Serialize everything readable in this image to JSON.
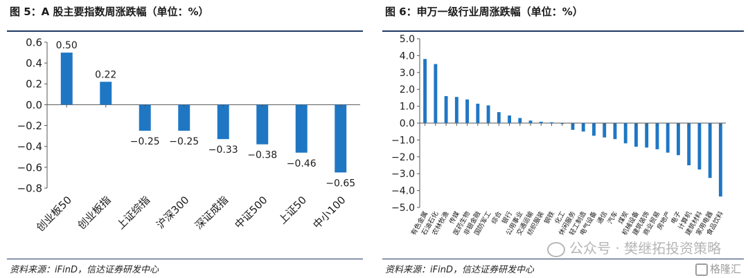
{
  "colors": {
    "bar": "#1f77c4",
    "rule": "#1f3864",
    "axis": "#555555"
  },
  "left": {
    "title": "图 5：A 股主要指数周涨跌幅（单位：%）",
    "source": "资料来源：iFinD，信达证券研发中心"
  },
  "right": {
    "title": "图 6：申万一级行业周涨跌幅（单位：%）",
    "source": "资料来源：iFinD，信达证券研发中心"
  },
  "watermark": {
    "icon": "wechat-icon",
    "text": "公众号 · 樊继拓投资策略",
    "brand": "格隆汇"
  },
  "chart_data": [
    {
      "type": "bar",
      "categories": [
        "创业板50",
        "创业板指",
        "上证综指",
        "沪深300",
        "深证成指",
        "中证500",
        "上证50",
        "中小100"
      ],
      "values": [
        0.5,
        0.22,
        -0.25,
        -0.25,
        -0.33,
        -0.38,
        -0.46,
        -0.65
      ],
      "data_labels": [
        "0.50",
        "0.22",
        "-0.25",
        "-0.25",
        "-0.33",
        "-0.38",
        "-0.46",
        "-0.65"
      ],
      "yticks": [
        "0.6",
        "0.4",
        "0.2",
        "0.0",
        "-0.2",
        "-0.4",
        "-0.6",
        "-0.8"
      ],
      "ylim": [
        -0.8,
        0.6
      ],
      "grid": false
    },
    {
      "type": "bar",
      "categories": [
        "有色金属",
        "石油石化",
        "农林牧渔",
        "传媒",
        "医药生物",
        "非银金融",
        "国防军工",
        "综合",
        "银行",
        "公用事业",
        "交通运输",
        "纺织服装",
        "钢铁",
        "化工",
        "休闲服务",
        "轻工制造",
        "电气设备",
        "通信",
        "汽车",
        "煤炭",
        "机械设备",
        "建筑装饰",
        "商业贸易",
        "房地产",
        "电子",
        "计算机",
        "建筑材料",
        "家用电器",
        "食品饮料"
      ],
      "values": [
        3.8,
        3.5,
        1.6,
        1.55,
        1.4,
        1.15,
        1.05,
        0.65,
        0.45,
        0.3,
        0.15,
        0.08,
        0.05,
        -0.05,
        -0.4,
        -0.5,
        -0.75,
        -0.85,
        -0.95,
        -1.2,
        -1.4,
        -1.45,
        -1.55,
        -1.75,
        -1.9,
        -2.5,
        -2.75,
        -3.25,
        -4.35
      ],
      "yticks": [
        "5.0",
        "4.0",
        "3.0",
        "2.0",
        "1.0",
        "0.0",
        "-1.0",
        "-2.0",
        "-3.0",
        "-4.0",
        "-5.0"
      ],
      "ylim": [
        -5.0,
        5.0
      ],
      "grid": false
    }
  ]
}
